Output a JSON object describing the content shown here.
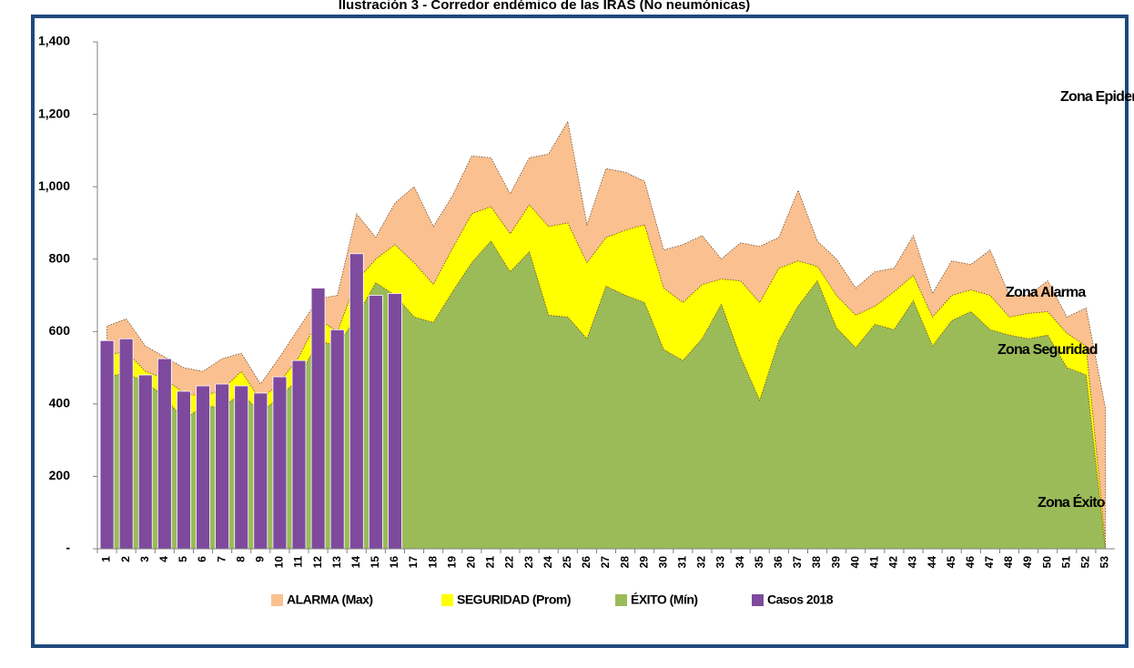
{
  "chart_data": {
    "type": "corridor",
    "title": "Ilustración 3 - Corredor endémico de las IRAS (No neumónicas)",
    "categories": [
      "1",
      "2",
      "3",
      "4",
      "5",
      "6",
      "7",
      "8",
      "9",
      "10",
      "11",
      "12",
      "13",
      "14",
      "15",
      "16",
      "17",
      "18",
      "19",
      "20",
      "21",
      "22",
      "23",
      "24",
      "25",
      "26",
      "27",
      "28",
      "29",
      "30",
      "31",
      "32",
      "33",
      "34",
      "35",
      "36",
      "37",
      "38",
      "39",
      "40",
      "41",
      "42",
      "43",
      "44",
      "45",
      "46",
      "47",
      "48",
      "49",
      "50",
      "51",
      "52",
      "53"
    ],
    "series": [
      {
        "name": "ALARMA (Max)",
        "color": "#fac090",
        "kind": "area",
        "values": [
          615,
          635,
          560,
          530,
          500,
          490,
          525,
          540,
          455,
          530,
          610,
          690,
          700,
          925,
          860,
          955,
          1000,
          890,
          975,
          1085,
          1080,
          980,
          1080,
          1090,
          1180,
          895,
          1050,
          1040,
          1015,
          825,
          840,
          865,
          800,
          845,
          835,
          860,
          990,
          850,
          800,
          720,
          765,
          775,
          865,
          705,
          795,
          785,
          825,
          700,
          700,
          740,
          640,
          665,
          390
        ]
      },
      {
        "name": "SEGURIDAD (Prom)",
        "color": "#ffff00",
        "kind": "area",
        "values": [
          535,
          545,
          490,
          470,
          430,
          420,
          440,
          490,
          410,
          460,
          530,
          635,
          600,
          740,
          800,
          840,
          790,
          730,
          830,
          925,
          945,
          870,
          950,
          890,
          900,
          790,
          860,
          880,
          895,
          720,
          680,
          730,
          745,
          740,
          680,
          775,
          795,
          780,
          700,
          645,
          670,
          710,
          755,
          640,
          700,
          715,
          700,
          640,
          650,
          655,
          595,
          560,
          20
        ]
      },
      {
        "name": "ÉXITO (Mín)",
        "color": "#9bbb59",
        "kind": "area",
        "values": [
          475,
          485,
          460,
          420,
          355,
          395,
          390,
          430,
          375,
          420,
          470,
          575,
          560,
          640,
          735,
          700,
          640,
          625,
          710,
          790,
          850,
          765,
          820,
          645,
          640,
          580,
          725,
          700,
          680,
          550,
          520,
          580,
          675,
          530,
          410,
          575,
          670,
          740,
          610,
          555,
          620,
          605,
          685,
          560,
          630,
          655,
          605,
          590,
          580,
          590,
          500,
          480,
          0
        ]
      },
      {
        "name": "Casos 2018",
        "color": "#7e4a9e",
        "kind": "bar",
        "values": [
          575,
          580,
          480,
          525,
          435,
          450,
          455,
          450,
          430,
          475,
          520,
          720,
          605,
          815,
          700,
          705,
          null,
          null,
          null,
          null,
          null,
          null,
          null,
          null,
          null,
          null,
          null,
          null,
          null,
          null,
          null,
          null,
          null,
          null,
          null,
          null,
          null,
          null,
          null,
          null,
          null,
          null,
          null,
          null,
          null,
          null,
          null,
          null,
          null,
          null,
          null,
          null,
          null
        ]
      }
    ],
    "ylim": [
      0,
      1400
    ],
    "yticks": [
      {
        "value": 0,
        "label": "-"
      },
      200,
      400,
      600,
      800,
      {
        "value": 1000,
        "label": "1,000"
      },
      {
        "value": 1200,
        "label": "1,200"
      },
      {
        "value": 1400,
        "label": "1,400"
      }
    ],
    "annotations": [
      "Zona Epidemia",
      "Zona Alarma",
      "Zona Seguridad",
      "Zona Éxito"
    ],
    "legend": "bottom"
  }
}
